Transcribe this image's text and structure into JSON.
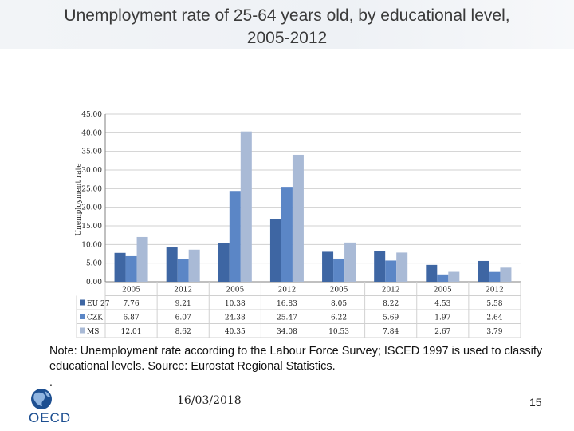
{
  "title": "Unemployment rate of 25-64 years old, by educational level, 2005-2012",
  "note": "Note: Unemployment rate according to the Labour Force Survey; ISCED 1997 is used to classify educational levels.  Source: Eurostat Regional Statistics.",
  "note_dot": ".",
  "footer": {
    "date": "16/03/2018",
    "page": "15",
    "logo_text": "OECD"
  },
  "colors": {
    "EU 27": "#3e66a3",
    "CZK": "#5b86c6",
    "MS": "#a9bad6",
    "grid": "#d0d0d0",
    "axis": "#808080"
  },
  "chart_data": {
    "type": "bar",
    "title": "",
    "ylabel": "Unemployment rate",
    "ylim": [
      0,
      45
    ],
    "yticks": [
      "0.00",
      "5.00",
      "10.00",
      "15.00",
      "20.00",
      "25.00",
      "30.00",
      "35.00",
      "40.00",
      "45.00"
    ],
    "categories": [
      "2005",
      "2012",
      "2005",
      "2012",
      "2005",
      "2012",
      "2005",
      "2012"
    ],
    "series": [
      {
        "name": "EU 27",
        "values": [
          7.76,
          9.21,
          10.38,
          16.83,
          8.05,
          8.22,
          4.53,
          5.58
        ],
        "labels": [
          "7.76",
          "9.21",
          "10.38",
          "16.83",
          "8.05",
          "8.22",
          "4.53",
          "5.58"
        ]
      },
      {
        "name": "CZK",
        "values": [
          6.87,
          6.07,
          24.38,
          25.47,
          6.22,
          5.69,
          1.97,
          2.64
        ],
        "labels": [
          "6.87",
          "6.07",
          "24.38",
          "25.47",
          "6.22",
          "5.69",
          "1.97",
          "2.64"
        ]
      },
      {
        "name": "MS",
        "values": [
          12.01,
          8.62,
          40.35,
          34.08,
          10.53,
          7.84,
          2.67,
          3.79
        ],
        "labels": [
          "12.01",
          "8.62",
          "40.35",
          "34.08",
          "10.53",
          "7.84",
          "2.67",
          "3.79"
        ]
      }
    ],
    "grid": true,
    "legend": "data-table-below"
  }
}
